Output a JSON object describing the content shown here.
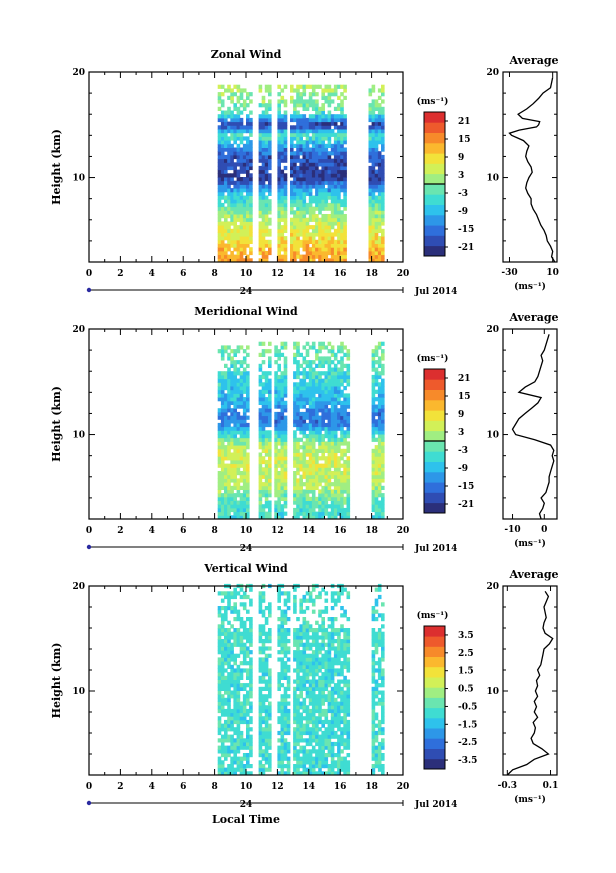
{
  "figure": {
    "date_label": "Jul 2014",
    "day_label": "24",
    "xlabel": "Local Time",
    "ylabel": "Height (km)",
    "colorbar_unit": "(ms⁻¹)",
    "average_title": "Average",
    "average_xunit": "(ms⁻¹)"
  },
  "colormap": [
    "#2b2f7a",
    "#2f4db3",
    "#2f6fdb",
    "#2d97e8",
    "#2ec2ec",
    "#3fdcd2",
    "#6ae5b0",
    "#a0ee82",
    "#d2f058",
    "#f2e23a",
    "#fbb82e",
    "#f78a2a",
    "#ee5a2c",
    "#dc2f2f"
  ],
  "chart_data": [
    {
      "type": "heatmap",
      "title": "Zonal Wind",
      "xlabel": "Local Time",
      "ylabel": "Height (km)",
      "xlim": [
        0,
        20
      ],
      "ylim": [
        2,
        20
      ],
      "xticks": [
        0,
        2,
        4,
        6,
        8,
        10,
        12,
        14,
        16,
        18,
        20
      ],
      "yticks": [
        10,
        20
      ],
      "colorbar": {
        "ticks": [
          21,
          15,
          9,
          3,
          -3,
          -9,
          -15,
          -21
        ],
        "range": [
          -24,
          24
        ],
        "zero_line": 0
      },
      "data_gaps_hours": [
        [
          10.3,
          10.7
        ],
        [
          11.5,
          11.9
        ],
        [
          12.5,
          12.8
        ],
        [
          16.4,
          17.8
        ]
      ],
      "data_time_range": [
        8.2,
        18.6
      ],
      "data_height_top_km": 18.5,
      "profile": [
        {
          "z": 18.5,
          "v": 3
        },
        {
          "z": 17.0,
          "v": 0
        },
        {
          "z": 16.0,
          "v": -5
        },
        {
          "z": 15.0,
          "v": -21
        },
        {
          "z": 14.0,
          "v": -2
        },
        {
          "z": 13.0,
          "v": -12
        },
        {
          "z": 12.0,
          "v": -18
        },
        {
          "z": 11.0,
          "v": -19
        },
        {
          "z": 10.0,
          "v": -21
        },
        {
          "z": 9.0,
          "v": -12
        },
        {
          "z": 8.0,
          "v": -5
        },
        {
          "z": 7.0,
          "v": 0
        },
        {
          "z": 6.0,
          "v": 3
        },
        {
          "z": 5.0,
          "v": 6
        },
        {
          "z": 4.0,
          "v": 9
        },
        {
          "z": 3.0,
          "v": 12
        },
        {
          "z": 2.0,
          "v": 14
        }
      ],
      "average": {
        "title": "Average",
        "xunit": "(ms⁻¹)",
        "xticks": [
          -30,
          10
        ],
        "xlim": [
          -36,
          14
        ],
        "z": [
          2,
          2.5,
          3,
          3.5,
          4,
          4.5,
          5,
          5.5,
          6,
          6.5,
          7,
          7.5,
          8,
          8.5,
          9,
          9.5,
          10,
          10.5,
          11,
          11.5,
          12,
          12.5,
          13,
          13.5,
          14,
          14.2,
          14.5,
          14.8,
          15,
          15.3,
          15.6,
          16,
          16.5,
          17,
          17.5,
          18,
          18.5,
          19,
          19.5
        ],
        "v": [
          12,
          9,
          10,
          8,
          5,
          4,
          2,
          -1,
          -3,
          -5,
          -8,
          -10,
          -10,
          -13,
          -15,
          -14,
          -12,
          -9,
          -10,
          -13,
          -15,
          -14,
          -12,
          -17,
          -28,
          -30,
          -21,
          -5,
          -3,
          -2,
          -18,
          -22,
          -14,
          -8,
          -3,
          1,
          8,
          9,
          10
        ]
      }
    },
    {
      "type": "heatmap",
      "title": "Meridional Wind",
      "xlabel": "Local Time",
      "ylabel": "Height (km)",
      "xlim": [
        0,
        20
      ],
      "ylim": [
        2,
        20
      ],
      "xticks": [
        0,
        2,
        4,
        6,
        8,
        10,
        12,
        14,
        16,
        18,
        20
      ],
      "yticks": [
        10,
        20
      ],
      "colorbar": {
        "ticks": [
          21,
          15,
          9,
          3,
          -3,
          -9,
          -15,
          -21
        ],
        "range": [
          -24,
          24
        ],
        "zero_line": 0
      },
      "data_gaps_hours": [
        [
          10.2,
          10.7
        ],
        [
          11.5,
          11.8
        ],
        [
          12.6,
          12.9
        ],
        [
          16.5,
          17.9
        ]
      ],
      "data_time_range": [
        8.2,
        18.6
      ],
      "data_height_top_km": 18.5,
      "profile": [
        {
          "z": 18.5,
          "v": 0
        },
        {
          "z": 17.0,
          "v": -3
        },
        {
          "z": 15.0,
          "v": -6
        },
        {
          "z": 13.0,
          "v": -10
        },
        {
          "z": 12.0,
          "v": -14
        },
        {
          "z": 11.0,
          "v": -14
        },
        {
          "z": 10.0,
          "v": -5
        },
        {
          "z": 9.0,
          "v": 3
        },
        {
          "z": 8.0,
          "v": 5
        },
        {
          "z": 7.0,
          "v": 5
        },
        {
          "z": 6.0,
          "v": 4
        },
        {
          "z": 5.0,
          "v": 3
        },
        {
          "z": 4.0,
          "v": -2
        },
        {
          "z": 3.0,
          "v": -4
        },
        {
          "z": 2.0,
          "v": -5
        }
      ],
      "average": {
        "title": "Average",
        "xunit": "(ms⁻¹)",
        "xticks": [
          -10,
          0
        ],
        "xlim": [
          -13,
          4
        ],
        "z": [
          2,
          2.5,
          3,
          3.5,
          4,
          4.5,
          5,
          5.5,
          6,
          6.5,
          7,
          7.5,
          8,
          8.5,
          9,
          9.5,
          10,
          10.5,
          11,
          11.5,
          12,
          12.5,
          13,
          13.5,
          14,
          14.5,
          15,
          15.5,
          16,
          16.5,
          17,
          17.5,
          18,
          18.5,
          19,
          19.5
        ],
        "v": [
          -1,
          -1.5,
          -0.5,
          0,
          -1,
          0.5,
          1,
          1.5,
          1.5,
          2,
          2.5,
          3,
          2.5,
          3,
          2,
          -3,
          -9,
          -10,
          -9,
          -8,
          -6,
          -4,
          -2,
          -1,
          -8,
          -6,
          -3,
          -2,
          -1.5,
          -1,
          -0.5,
          -1,
          0,
          0.5,
          1,
          1.5
        ]
      }
    },
    {
      "type": "heatmap",
      "title": "Vertical Wind",
      "xlabel": "Local Time",
      "ylabel": "Height (km)",
      "xlim": [
        0,
        20
      ],
      "ylim": [
        2,
        20
      ],
      "xticks": [
        0,
        2,
        4,
        6,
        8,
        10,
        12,
        14,
        16,
        18,
        20
      ],
      "yticks": [
        10,
        20
      ],
      "colorbar": {
        "ticks": [
          3.5,
          2.5,
          1.5,
          0.5,
          -0.5,
          -1.5,
          -2.5,
          -3.5
        ],
        "range": [
          -4,
          4
        ],
        "zero_line": null
      },
      "data_gaps_hours": [
        [
          10.3,
          10.8
        ],
        [
          11.5,
          11.9
        ],
        [
          12.7,
          13.0
        ],
        [
          16.6,
          17.9
        ]
      ],
      "data_time_range": [
        8.2,
        18.6
      ],
      "data_height_top_km": 20,
      "profile": [
        {
          "z": 20,
          "v": -0.3
        },
        {
          "z": 15,
          "v": -0.4
        },
        {
          "z": 10,
          "v": -0.6
        },
        {
          "z": 5,
          "v": -0.6
        },
        {
          "z": 2,
          "v": -0.9
        }
      ],
      "average": {
        "title": "Average",
        "xunit": "(ms⁻¹)",
        "xticks": [
          -0.3,
          0.1
        ],
        "xlim": [
          -0.34,
          0.16
        ],
        "z": [
          2,
          2.5,
          3,
          3.5,
          4,
          4.5,
          5,
          5.5,
          6,
          6.5,
          7,
          7.5,
          8,
          8.5,
          9,
          9.5,
          10,
          10.5,
          11,
          11.5,
          12,
          12.5,
          13,
          13.5,
          14,
          14.5,
          15,
          15.5,
          16,
          16.5,
          17,
          17.5,
          18,
          18.5,
          19,
          19.5
        ],
        "v": [
          -0.3,
          -0.25,
          -0.12,
          -0.05,
          0.08,
          0.02,
          -0.06,
          -0.08,
          -0.05,
          -0.04,
          -0.06,
          -0.02,
          -0.05,
          -0.03,
          -0.05,
          -0.02,
          -0.04,
          -0.02,
          -0.03,
          0.0,
          -0.02,
          0.01,
          0.02,
          0.03,
          0.04,
          0.09,
          0.12,
          0.05,
          0.03,
          0.04,
          0.06,
          0.05,
          0.04,
          0.06,
          0.08,
          0.05
        ]
      }
    }
  ]
}
